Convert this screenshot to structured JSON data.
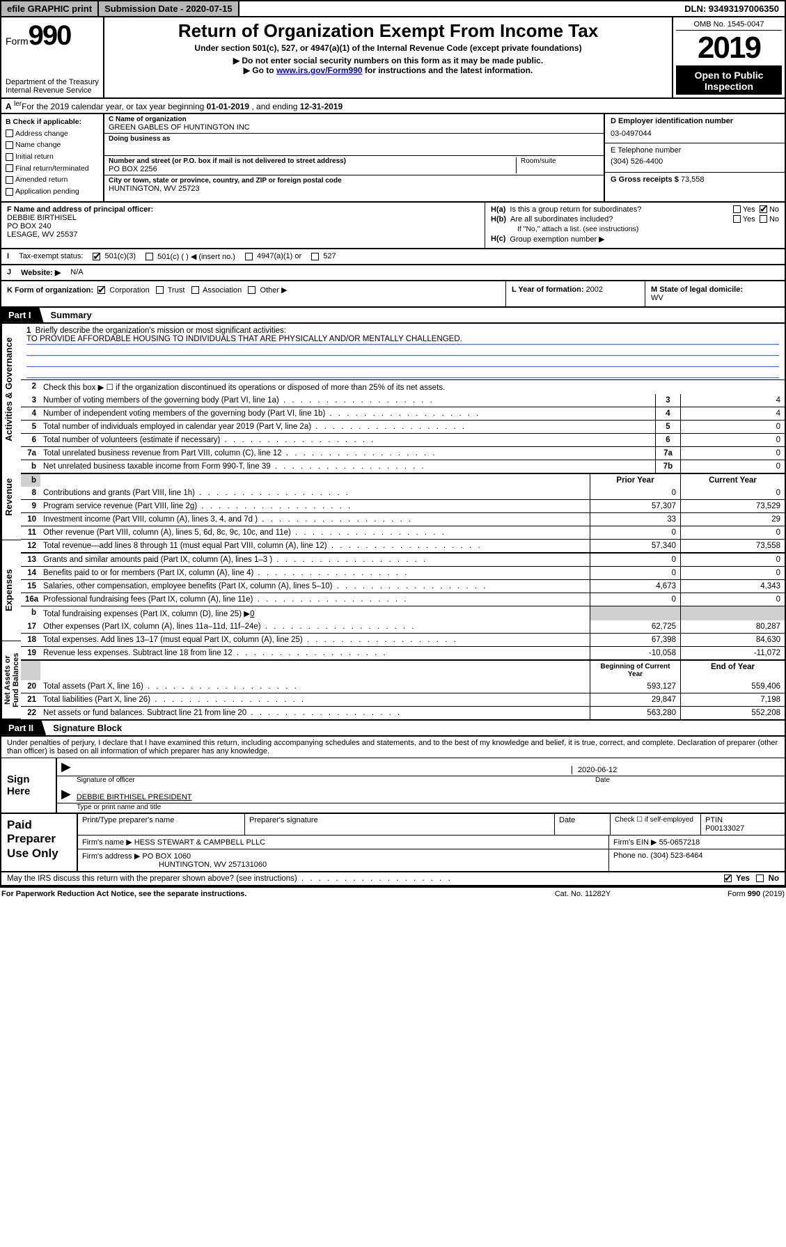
{
  "topbar": {
    "efile": "efile GRAPHIC print",
    "subdate_label": "Submission Date - 2020-07-15",
    "dln": "DLN: 93493197006350"
  },
  "header": {
    "form_prefix": "Form",
    "form_number": "990",
    "dept1": "Department of the Treasury",
    "dept2": "Internal Revenue Service",
    "title": "Return of Organization Exempt From Income Tax",
    "subtitle": "Under section 501(c), 527, or 4947(a)(1) of the Internal Revenue Code (except private foundations)",
    "note1": "▶ Do not enter social security numbers on this form as it may be made public.",
    "note2_pre": "▶ Go to ",
    "note2_link": "www.irs.gov/Form990",
    "note2_post": " for instructions and the latest information.",
    "omb": "OMB No. 1545-0047",
    "year": "2019",
    "inspection1": "Open to Public",
    "inspection2": "Inspection"
  },
  "period": {
    "label": "A",
    "text_pre": "For the 2019 calendar year, or tax year beginning ",
    "begin": "01-01-2019",
    "mid": " , and ending ",
    "end": "12-31-2019"
  },
  "checkboxes": {
    "header": "B Check if applicable:",
    "items": [
      "Address change",
      "Name change",
      "Initial return",
      "Final return/terminated",
      "Amended return",
      "Application pending"
    ]
  },
  "entity": {
    "c_label": "C Name of organization",
    "c_name": "GREEN GABLES OF HUNTINGTON INC",
    "dba_label": "Doing business as",
    "dba": "",
    "street_label": "Number and street (or P.O. box if mail is not delivered to street address)",
    "street": "PO BOX 2256",
    "room_label": "Room/suite",
    "city_label": "City or town, state or province, country, and ZIP or foreign postal code",
    "city": "HUNTINGTON, WV  25723",
    "d_label": "D Employer identification number",
    "d_ein": "03-0497044",
    "e_label": "E Telephone number",
    "e_phone": "(304) 526-4400",
    "g_label": "G Gross receipts $ ",
    "g_val": "73,558"
  },
  "fh": {
    "f_label": "F  Name and address of principal officer:",
    "f_name": "DEBBIE BIRTHISEL",
    "f_addr1": "PO BOX 240",
    "f_addr2": "LESAGE, WV  25537",
    "ha_label": "H(a)",
    "ha_text": "Is this a group return for subordinates?",
    "hb_label": "H(b)",
    "hb_text": "Are all subordinates included?",
    "hb_note": "If \"No,\" attach a list. (see instructions)",
    "hc_label": "H(c)",
    "hc_text": "Group exemption number ▶",
    "yes": "Yes",
    "no": "No"
  },
  "irow": {
    "label": "I",
    "text": "Tax-exempt status:",
    "opt1": "501(c)(3)",
    "opt2": "501(c) (   ) ◀ (insert no.)",
    "opt3": "4947(a)(1) or",
    "opt4": "527"
  },
  "jrow": {
    "label": "J",
    "text": "Website: ▶",
    "val": "N/A"
  },
  "klm": {
    "k_label": "K Form of organization:",
    "k_opts": [
      "Corporation",
      "Trust",
      "Association",
      "Other ▶"
    ],
    "l_label": "L Year of formation: ",
    "l_val": "2002",
    "m_label": "M State of legal domicile:",
    "m_val": "WV"
  },
  "part1": {
    "tab": "Part I",
    "title": "Summary",
    "mission_num": "1",
    "mission_label": "Briefly describe the organization's mission or most significant activities:",
    "mission_text": "TO PROVIDE AFFORDABLE HOUSING TO INDIVIDUALS THAT ARE PHYSICALLY AND/OR MENTALLY CHALLENGED.",
    "line2_num": "2",
    "line2_text": "Check this box ▶ ☐  if the organization discontinued its operations or disposed of more than 25% of its net assets.",
    "side_activities": "Activities & Governance",
    "side_revenue": "Revenue",
    "side_expenses": "Expenses",
    "side_netassets": "Net Assets or Fund Balances",
    "rows_ag": [
      {
        "n": "3",
        "d": "Number of voting members of the governing body (Part VI, line 1a)",
        "b": "3",
        "v": "4"
      },
      {
        "n": "4",
        "d": "Number of independent voting members of the governing body (Part VI, line 1b)",
        "b": "4",
        "v": "4"
      },
      {
        "n": "5",
        "d": "Total number of individuals employed in calendar year 2019 (Part V, line 2a)",
        "b": "5",
        "v": "0"
      },
      {
        "n": "6",
        "d": "Total number of volunteers (estimate if necessary)",
        "b": "6",
        "v": "0"
      },
      {
        "n": "7a",
        "d": "Total unrelated business revenue from Part VIII, column (C), line 12",
        "b": "7a",
        "v": "0"
      },
      {
        "n": "b",
        "d": "Net unrelated business taxable income from Form 990-T, line 39",
        "b": "7b",
        "v": "0"
      }
    ],
    "hdr_prior": "Prior Year",
    "hdr_current": "Current Year",
    "rows_rev": [
      {
        "n": "8",
        "d": "Contributions and grants (Part VIII, line 1h)",
        "p": "0",
        "c": "0"
      },
      {
        "n": "9",
        "d": "Program service revenue (Part VIII, line 2g)",
        "p": "57,307",
        "c": "73,529"
      },
      {
        "n": "10",
        "d": "Investment income (Part VIII, column (A), lines 3, 4, and 7d )",
        "p": "33",
        "c": "29"
      },
      {
        "n": "11",
        "d": "Other revenue (Part VIII, column (A), lines 5, 6d, 8c, 9c, 10c, and 11e)",
        "p": "0",
        "c": "0"
      },
      {
        "n": "12",
        "d": "Total revenue—add lines 8 through 11 (must equal Part VIII, column (A), line 12)",
        "p": "57,340",
        "c": "73,558"
      }
    ],
    "rows_exp": [
      {
        "n": "13",
        "d": "Grants and similar amounts paid (Part IX, column (A), lines 1–3 )",
        "p": "0",
        "c": "0"
      },
      {
        "n": "14",
        "d": "Benefits paid to or for members (Part IX, column (A), line 4)",
        "p": "0",
        "c": "0"
      },
      {
        "n": "15",
        "d": "Salaries, other compensation, employee benefits (Part IX, column (A), lines 5–10)",
        "p": "4,673",
        "c": "4,343"
      },
      {
        "n": "16a",
        "d": "Professional fundraising fees (Part IX, column (A), line 11e)",
        "p": "0",
        "c": "0"
      }
    ],
    "row16b": {
      "n": "b",
      "d": "Total fundraising expenses (Part IX, column (D), line 25) ▶",
      "v": "0"
    },
    "rows_exp2": [
      {
        "n": "17",
        "d": "Other expenses (Part IX, column (A), lines 11a–11d, 11f–24e)",
        "p": "62,725",
        "c": "80,287"
      },
      {
        "n": "18",
        "d": "Total expenses. Add lines 13–17 (must equal Part IX, column (A), line 25)",
        "p": "67,398",
        "c": "84,630"
      },
      {
        "n": "19",
        "d": "Revenue less expenses. Subtract line 18 from line 12",
        "p": "-10,058",
        "c": "-11,072"
      }
    ],
    "hdr_begin": "Beginning of Current Year",
    "hdr_end": "End of Year",
    "rows_na": [
      {
        "n": "20",
        "d": "Total assets (Part X, line 16)",
        "p": "593,127",
        "c": "559,406"
      },
      {
        "n": "21",
        "d": "Total liabilities (Part X, line 26)",
        "p": "29,847",
        "c": "7,198"
      },
      {
        "n": "22",
        "d": "Net assets or fund balances. Subtract line 21 from line 20",
        "p": "563,280",
        "c": "552,208"
      }
    ]
  },
  "part2": {
    "tab": "Part II",
    "title": "Signature Block",
    "intro": "Under penalties of perjury, I declare that I have examined this return, including accompanying schedules and statements, and to the best of my knowledge and belief, it is true, correct, and complete. Declaration of preparer (other than officer) is based on all information of which preparer has any knowledge.",
    "sign_here": "Sign Here",
    "sig_officer_label": "Signature of officer",
    "sig_date": "2020-06-12",
    "sig_date_label": "Date",
    "typed_name": "DEBBIE BIRTHISEL PRESIDENT",
    "typed_label": "Type or print name and title"
  },
  "prep": {
    "title": "Paid Preparer Use Only",
    "h_print": "Print/Type preparer's name",
    "h_sig": "Preparer's signature",
    "h_date": "Date",
    "h_check": "Check ☐ if self-employed",
    "h_ptin": "PTIN",
    "ptin": "P00133027",
    "firm_name_label": "Firm's name    ▶",
    "firm_name": "HESS STEWART & CAMPBELL PLLC",
    "firm_ein_label": "Firm's EIN ▶",
    "firm_ein": "55-0657218",
    "firm_addr_label": "Firm's address ▶",
    "firm_addr1": "PO BOX 1060",
    "firm_addr2": "HUNTINGTON, WV  257131060",
    "phone_label": "Phone no. ",
    "phone": "(304) 523-6464"
  },
  "discuss": {
    "text": "May the IRS discuss this return with the preparer shown above? (see instructions)",
    "yes": "Yes",
    "no": "No"
  },
  "footer": {
    "left": "For Paperwork Reduction Act Notice, see the separate instructions.",
    "mid": "Cat. No. 11282Y",
    "right": "Form 990 (2019)"
  },
  "colors": {
    "link": "#0000cc",
    "ruleline": "#4060ff",
    "shade": "#d0d0d0",
    "topbar_gray": "#b8b8b8"
  }
}
